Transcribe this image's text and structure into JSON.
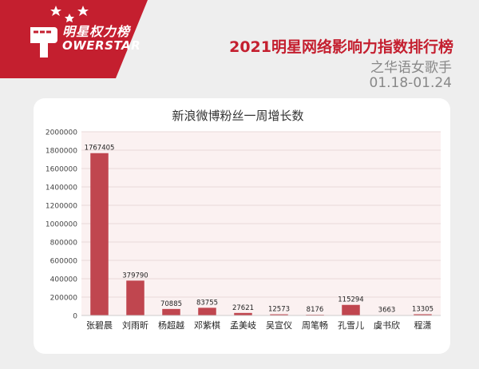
{
  "header": {
    "logo_cn": "明星权力榜",
    "logo_en": "OWERSTAR",
    "title": "2021明星网络影响力指数排行榜",
    "subtitle": "之华语女歌手",
    "date_range": "01.18-01.24"
  },
  "colors": {
    "brand_red": "#c41f2f",
    "bar": "#c0464f"
  },
  "chart_data": {
    "type": "bar",
    "title": "新浪微博粉丝一周增长数",
    "categories": [
      "张碧晨",
      "刘雨昕",
      "杨超越",
      "邓紫棋",
      "孟美岐",
      "吴宣仪",
      "周笔畅",
      "孔雪儿",
      "虞书欣",
      "程潇"
    ],
    "values": [
      1767405,
      379790,
      70885,
      83755,
      27621,
      12573,
      8176,
      115294,
      3663,
      13305
    ],
    "data_labels": [
      "1767405",
      "379790",
      "70885",
      "83755",
      "27621",
      "12573",
      "8176",
      "115294",
      "3663",
      "13305"
    ],
    "y_ticks": [
      0,
      200000,
      400000,
      600000,
      800000,
      1000000,
      1200000,
      1400000,
      1600000,
      1800000,
      2000000
    ],
    "ylim": [
      0,
      2000000
    ],
    "grid": true
  }
}
